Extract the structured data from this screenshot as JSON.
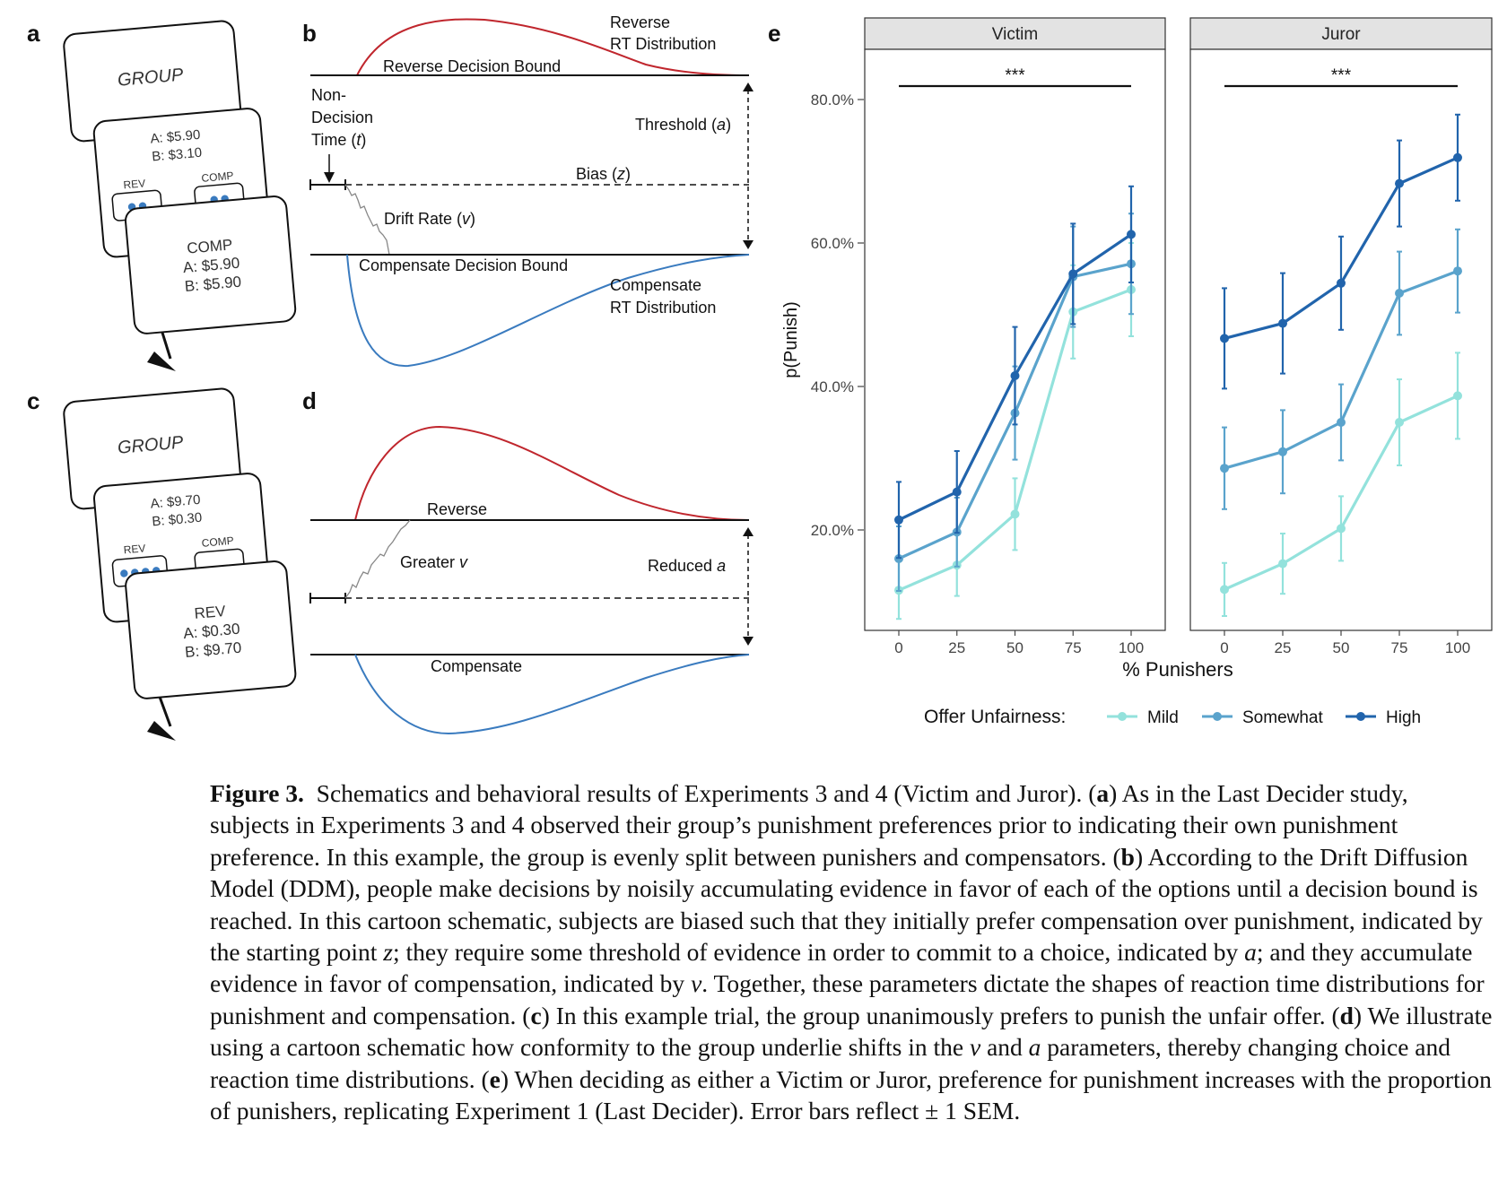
{
  "panels": {
    "a": "a",
    "b": "b",
    "c": "c",
    "d": "d",
    "e": "e"
  },
  "panel_a": {
    "card1_title": "GROUP",
    "card2_line1": "A: $5.90",
    "card2_line2": "B: $3.10",
    "rev_label": "REV",
    "comp_label": "COMP",
    "rev_dots": 2,
    "comp_dots": 2,
    "card3_title": "COMP",
    "card3_line1": "A: $5.90",
    "card3_line2": "B: $5.90"
  },
  "panel_c": {
    "card1_title": "GROUP",
    "card2_line1": "A: $9.70",
    "card2_line2": "B: $0.30",
    "rev_label": "REV",
    "comp_label": "COMP",
    "rev_dots": 4,
    "comp_dots": 0,
    "card3_title": "REV",
    "card3_line1": "A: $0.30",
    "card3_line2": "B: $9.70"
  },
  "panel_b": {
    "reverse_dist_1": "Reverse",
    "reverse_dist_2": "RT Distribution",
    "reverse_bound": "Reverse Decision Bound",
    "ndt_1": "Non-",
    "ndt_2": "Decision",
    "ndt_3": "Time (",
    "ndt_var": "t",
    "ndt_close": ")",
    "threshold": "Threshold (",
    "threshold_var": "a",
    "threshold_close": ")",
    "bias": "Bias (",
    "bias_var": "z",
    "bias_close": ")",
    "drift": "Drift Rate (",
    "drift_var": "v",
    "drift_close": ")",
    "compensate_bound": "Compensate Decision Bound",
    "comp_dist_1": "Compensate",
    "comp_dist_2": "RT Distribution",
    "colors": {
      "reverse": "#c0262d",
      "compensate": "#3a7bbf"
    }
  },
  "panel_d": {
    "reverse": "Reverse",
    "greater": "Greater ",
    "greater_var": "v",
    "reduced": "Reduced ",
    "reduced_var": "a",
    "compensate": "Compensate"
  },
  "chart_data": {
    "type": "line",
    "facets": [
      "Victim",
      "Juror"
    ],
    "x": [
      0,
      25,
      50,
      75,
      100
    ],
    "xlabel": "% Punishers",
    "ylabel": "p(Punish)",
    "yticks": [
      "20.0%",
      "40.0%",
      "60.0%",
      "80.0%"
    ],
    "xticks": [
      "0",
      "25",
      "50",
      "75",
      "100"
    ],
    "ylim": [
      0.06,
      0.87
    ],
    "significance": "***",
    "legend_title": "Offer Unfairness:",
    "legend_position": "bottom",
    "error_bars": "± 1 SEM",
    "series": [
      {
        "name": "Mild",
        "color": "#93e2dc",
        "victim": [
          0.116,
          0.151,
          0.222,
          0.504,
          0.535
        ],
        "victim_se": [
          0.04,
          0.043,
          0.05,
          0.065,
          0.065
        ],
        "juror": [
          0.117,
          0.153,
          0.202,
          0.35,
          0.387
        ],
        "juror_se": [
          0.037,
          0.042,
          0.045,
          0.06,
          0.06
        ]
      },
      {
        "name": "Somewhat",
        "color": "#5aa3cc",
        "victim": [
          0.16,
          0.197,
          0.363,
          0.553,
          0.571
        ],
        "victim_se": [
          0.045,
          0.048,
          0.065,
          0.07,
          0.07
        ],
        "juror": [
          0.286,
          0.309,
          0.35,
          0.53,
          0.561
        ],
        "juror_se": [
          0.057,
          0.058,
          0.053,
          0.058,
          0.058
        ]
      },
      {
        "name": "High",
        "color": "#2164ac",
        "victim": [
          0.214,
          0.253,
          0.415,
          0.557,
          0.612
        ],
        "victim_se": [
          0.053,
          0.057,
          0.068,
          0.07,
          0.067
        ],
        "juror": [
          0.467,
          0.488,
          0.544,
          0.683,
          0.719
        ],
        "juror_se": [
          0.07,
          0.07,
          0.065,
          0.06,
          0.06
        ]
      }
    ]
  },
  "caption": {
    "fig": "Figure 3.",
    "title": "Schematics and behavioral results of Experiments 3 and 4 (Victim and Juror). (",
    "a": "a",
    "t1": ") As in the Last Decider study, subjects in Experiments 3 and 4 observed their group’s punishment preferences prior to indicating their own punishment preference. In this example, the group is evenly split between punishers and compensators. (",
    "b": "b",
    "t2": ") According to the Drift Diffusion Model (DDM), people make decisions by noisily accumulating evidence in favor of each of the options until a decision bound is reached. In this cartoon schematic, subjects are biased such that they initially prefer compensation over punishment, indicated by the starting point ",
    "z": "z",
    "t3": "; they require some threshold of evidence in order to commit to a choice, indicated by ",
    "a2": "a",
    "t4": "; and they accumulate evidence in favor of compensation, indicated by ",
    "v": "v",
    "t5": ". Together, these parameters dictate the shapes of reaction time distributions for punishment and compensation. (",
    "c": "c",
    "t6": ") In this example trial, the group unanimously prefers to punish the unfair offer. (",
    "d": "d",
    "t7": ") We illustrate using a cartoon schematic how conformity to the group underlie shifts in the ",
    "v2": "v",
    "t8": " and ",
    "a3": "a",
    "t9": " parameters, thereby changing choice and reaction time distributions. (",
    "e": "e",
    "t10": ") When deciding as either a Victim or Juror, preference for punishment increases with the proportion of punishers, replicating Experiment 1 (Last Decider). Error bars reflect ± 1 SEM."
  }
}
